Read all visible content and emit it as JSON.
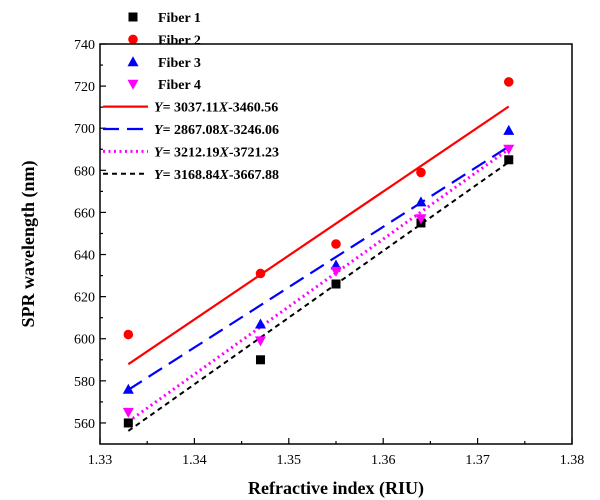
{
  "chart_data": {
    "type": "scatter",
    "xlabel": "Refractive index (RIU)",
    "ylabel": "SPR wavelength (nm)",
    "xlim": [
      1.33,
      1.38
    ],
    "ylim": [
      550,
      740
    ],
    "xticks": [
      1.33,
      1.34,
      1.35,
      1.36,
      1.37,
      1.38
    ],
    "yticks": [
      560,
      580,
      600,
      620,
      640,
      660,
      680,
      700,
      720,
      740
    ],
    "xtick_labels": [
      "1.33",
      "1.34",
      "1.35",
      "1.36",
      "1.37",
      "1.38"
    ],
    "ytick_labels": [
      "560",
      "580",
      "600",
      "620",
      "640",
      "660",
      "680",
      "700",
      "720",
      "740"
    ],
    "x": [
      1.333,
      1.347,
      1.355,
      1.364,
      1.3733
    ],
    "series": [
      {
        "name": "Fiber 1",
        "marker": "square",
        "color": "#000000",
        "values": [
          560,
          590,
          626,
          655,
          685
        ]
      },
      {
        "name": "Fiber 2",
        "marker": "circle",
        "color": "#ff0000",
        "values": [
          602,
          631,
          645,
          679,
          722
        ]
      },
      {
        "name": "Fiber 3",
        "marker": "triangle-up",
        "color": "#0000ff",
        "values": [
          576,
          607,
          635,
          665,
          699
        ]
      },
      {
        "name": "Fiber 4",
        "marker": "triangle-down",
        "color": "#ff00ff",
        "values": [
          565,
          599,
          632,
          657,
          690
        ]
      }
    ],
    "fits": [
      {
        "pre": "Y",
        "mid": "= 3037.11",
        "var": "X",
        "post": "-3460.56",
        "slope": 3037.11,
        "intercept": -3460.56,
        "color": "#ff0000",
        "dash": "solid"
      },
      {
        "pre": "Y",
        "mid": "= 2867.08",
        "var": "X",
        "post": "-3246.06",
        "slope": 2867.08,
        "intercept": -3246.06,
        "color": "#0000ff",
        "dash": "dashed"
      },
      {
        "pre": "Y",
        "mid": "= 3212.19",
        "var": "X",
        "post": "-3721.23",
        "slope": 3212.19,
        "intercept": -3721.23,
        "color": "#ff00ff",
        "dash": "dotted"
      },
      {
        "pre": "Y",
        "mid": "= 3168.84",
        "var": "X",
        "post": "-3667.88",
        "slope": 3168.84,
        "intercept": -3667.88,
        "color": "#000000",
        "dash": "short-dashed"
      }
    ],
    "fit_x_range": [
      1.333,
      1.3733
    ],
    "legend_placement": "top-left",
    "grid": false
  }
}
